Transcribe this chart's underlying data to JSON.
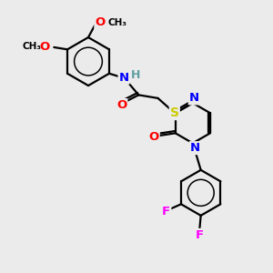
{
  "bg_color": "#ebebeb",
  "bond_color": "#000000",
  "bond_width": 1.6,
  "atom_colors": {
    "N": "#0000ff",
    "O": "#ff0000",
    "S": "#cccc00",
    "F": "#ff00ff",
    "H": "#5f9ea0",
    "C": "#000000"
  },
  "font_size": 9,
  "figsize": [
    3.0,
    3.0
  ],
  "dpi": 100
}
